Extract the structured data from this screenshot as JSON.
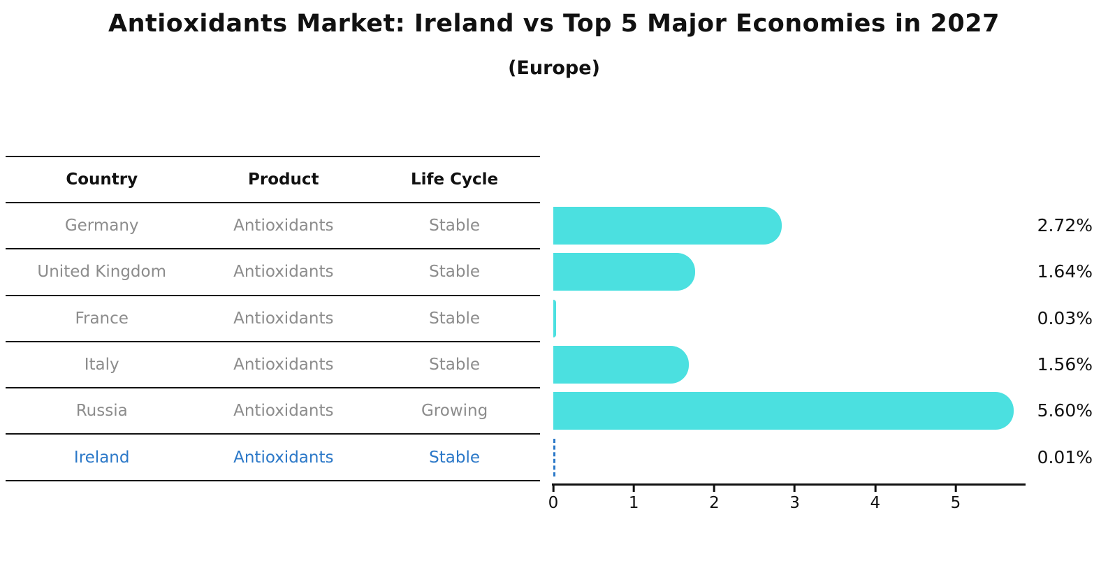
{
  "title": "Antioxidants Market: Ireland vs Top 5 Major Economies in 2027",
  "subtitle": "(Europe)",
  "table": {
    "headers": [
      "Country",
      "Product",
      "Life Cycle"
    ],
    "rows": [
      {
        "country": "Germany",
        "product": "Antioxidants",
        "life_cycle": "Stable"
      },
      {
        "country": "United Kingdom",
        "product": "Antioxidants",
        "life_cycle": "Stable"
      },
      {
        "country": "France",
        "product": "Antioxidants",
        "life_cycle": "Stable"
      },
      {
        "country": "Italy",
        "product": "Antioxidants",
        "life_cycle": "Stable"
      },
      {
        "country": "Russia",
        "product": "Antioxidants",
        "life_cycle": "Growing"
      },
      {
        "country": "Ireland",
        "product": "Antioxidants",
        "life_cycle": "Stable"
      }
    ],
    "highlighted_row": "Ireland"
  },
  "chart_data": {
    "type": "bar",
    "orientation": "horizontal",
    "title": "Antioxidants Market: Ireland vs Top 5 Major Economies in 2027",
    "subtitle": "(Europe)",
    "categories": [
      "Germany",
      "United Kingdom",
      "France",
      "Italy",
      "Russia",
      "Ireland"
    ],
    "values": [
      2.72,
      1.64,
      0.03,
      1.56,
      5.6,
      0.01
    ],
    "value_labels": [
      "2.72%",
      "1.64%",
      "0.03%",
      "1.56%",
      "5.60%",
      "0.01%"
    ],
    "unit": "%",
    "x_ticks": [
      "0",
      "1",
      "2",
      "3",
      "4",
      "5"
    ],
    "xlim": [
      0,
      5.87
    ],
    "grid": false,
    "legend": false,
    "bar_color": "#4be0e0",
    "highlight": {
      "index": 5,
      "style": "dashed-outline",
      "color": "#2b78c8"
    }
  },
  "colors": {
    "bar": "#4be0e0",
    "highlight_text": "#2b78c8",
    "row_text": "#8c8c8c",
    "header_text": "#111111",
    "axis": "#111111",
    "background": "#ffffff"
  }
}
